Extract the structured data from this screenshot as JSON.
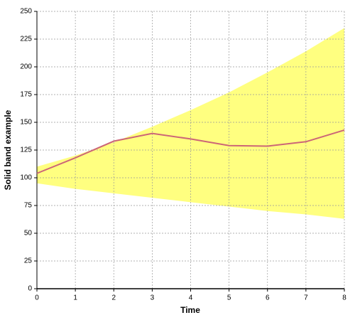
{
  "chart_data": {
    "type": "line",
    "x_label": "Time",
    "y_label": "Solid band example",
    "x": [
      0,
      1,
      2,
      3,
      4,
      5,
      6,
      7,
      8
    ],
    "series": [
      {
        "color": "#cc6677",
        "values": [
          104,
          118,
          133,
          140,
          135,
          129,
          128.5,
          132.5,
          143
        ]
      }
    ],
    "band": {
      "color": "#ffff80",
      "upper": [
        110,
        120,
        132,
        146,
        161,
        177,
        195,
        214,
        235
      ],
      "lower": [
        95,
        90,
        86,
        82,
        78,
        74,
        70,
        67,
        63
      ]
    },
    "xlim": [
      0,
      8
    ],
    "xticks": [
      0,
      1,
      2,
      3,
      4,
      5,
      6,
      7,
      8
    ],
    "ylim": [
      0,
      250
    ],
    "yticks": [
      0,
      25,
      50,
      75,
      100,
      125,
      150,
      175,
      200,
      225,
      250
    ],
    "grid": true
  }
}
